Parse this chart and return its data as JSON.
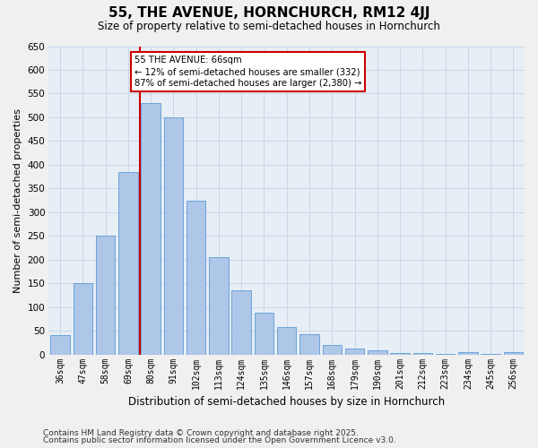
{
  "title": "55, THE AVENUE, HORNCHURCH, RM12 4JJ",
  "subtitle": "Size of property relative to semi-detached houses in Hornchurch",
  "xlabel": "Distribution of semi-detached houses by size in Hornchurch",
  "ylabel": "Number of semi-detached properties",
  "categories": [
    "36sqm",
    "47sqm",
    "58sqm",
    "69sqm",
    "80sqm",
    "91sqm",
    "102sqm",
    "113sqm",
    "124sqm",
    "135sqm",
    "146sqm",
    "157sqm",
    "168sqm",
    "179sqm",
    "190sqm",
    "201sqm",
    "212sqm",
    "223sqm",
    "234sqm",
    "245sqm",
    "256sqm"
  ],
  "values": [
    40,
    150,
    250,
    385,
    530,
    500,
    325,
    205,
    135,
    88,
    58,
    42,
    20,
    13,
    8,
    4,
    3,
    2,
    5,
    2,
    5
  ],
  "bar_color": "#aec6e8",
  "bar_edge_color": "#5b9bd5",
  "bar_width": 0.85,
  "property_line_x": 3.5,
  "property_label": "55 THE AVENUE: 66sqm",
  "annotation_smaller": "← 12% of semi-detached houses are smaller (332)",
  "annotation_larger": "87% of semi-detached houses are larger (2,380) →",
  "annotation_box_color": "#ffffff",
  "annotation_box_edge": "#cc0000",
  "red_line_color": "#cc0000",
  "ylim": [
    0,
    650
  ],
  "yticks": [
    0,
    50,
    100,
    150,
    200,
    250,
    300,
    350,
    400,
    450,
    500,
    550,
    600,
    650
  ],
  "grid_color": "#c8d8e8",
  "bg_color": "#e8eef5",
  "fig_bg_color": "#f0f0f0",
  "footer_line1": "Contains HM Land Registry data © Crown copyright and database right 2025.",
  "footer_line2": "Contains public sector information licensed under the Open Government Licence v3.0."
}
